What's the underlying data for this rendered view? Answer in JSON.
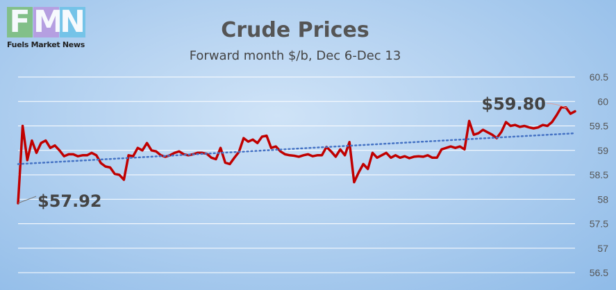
{
  "logo": {
    "letters": [
      "F",
      "M",
      "N"
    ],
    "letter_colors": [
      "#7fbf7f",
      "#b79be0",
      "#6fc3e8"
    ],
    "tagline": "Fuels Market News"
  },
  "chart_data": {
    "type": "line",
    "title": "Crude Prices",
    "subtitle": "Forward month $/b, Dec 6-Dec 13",
    "xlabel": "",
    "ylabel": "",
    "ylim": [
      56.5,
      60.5
    ],
    "yticks": [
      "56.5",
      "57",
      "57.5",
      "58",
      "58.5",
      "59",
      "59.5",
      "60",
      "60.5"
    ],
    "grid": true,
    "series": [
      {
        "values": [
          57.92,
          59.5,
          58.8,
          59.2,
          58.95,
          59.15,
          59.2,
          59.05,
          59.1,
          59.0,
          58.88,
          58.92,
          58.92,
          58.88,
          58.9,
          58.9,
          58.95,
          58.9,
          58.74,
          58.67,
          58.65,
          58.52,
          58.5,
          58.4,
          58.9,
          58.88,
          59.05,
          59.0,
          59.15,
          59.0,
          58.98,
          58.9,
          58.87,
          58.9,
          58.95,
          58.98,
          58.92,
          58.9,
          58.92,
          58.95,
          58.95,
          58.93,
          58.85,
          58.82,
          59.05,
          58.75,
          58.72,
          58.85,
          58.97,
          59.25,
          59.18,
          59.22,
          59.15,
          59.28,
          59.3,
          59.05,
          59.08,
          58.98,
          58.92,
          58.9,
          58.89,
          58.87,
          58.9,
          58.92,
          58.88,
          58.9,
          58.9,
          59.07,
          58.98,
          58.87,
          59.02,
          58.9,
          59.17,
          58.35,
          58.55,
          58.72,
          58.62,
          58.95,
          58.85,
          58.9,
          58.95,
          58.85,
          58.9,
          58.85,
          58.88,
          58.84,
          58.87,
          58.88,
          58.87,
          58.9,
          58.85,
          58.85,
          59.02,
          59.05,
          59.08,
          59.05,
          59.08,
          59.02,
          59.6,
          59.32,
          59.35,
          59.42,
          59.37,
          59.32,
          59.25,
          59.38,
          59.58,
          59.5,
          59.52,
          59.48,
          59.5,
          59.47,
          59.45,
          59.47,
          59.52,
          59.5,
          59.58,
          59.72,
          59.88,
          59.88,
          59.75,
          59.8
        ],
        "color": "#c00000"
      },
      {
        "type": "linear-trendline",
        "values": [
          58.72,
          59.35
        ],
        "color": "#4472c4"
      }
    ],
    "annotations": [
      {
        "text": "$57.92"
      },
      {
        "text": "$59.80"
      }
    ]
  }
}
